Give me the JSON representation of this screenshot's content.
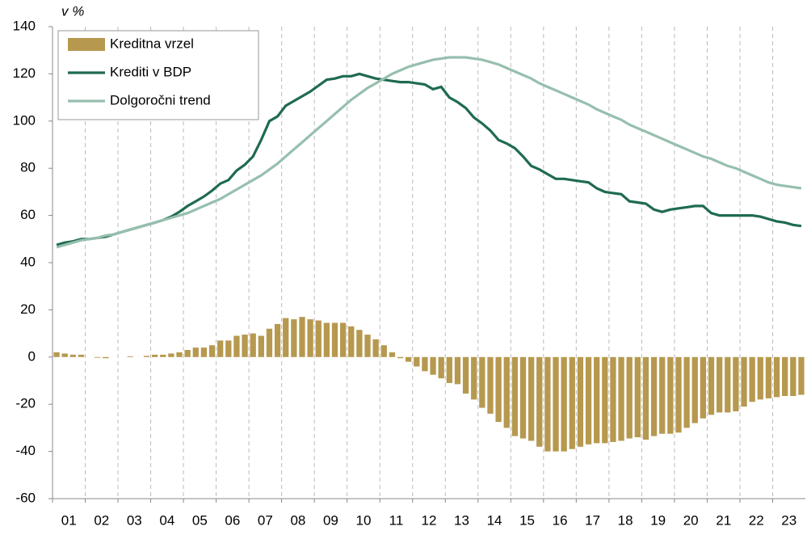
{
  "chart_data": {
    "type": "bar-line",
    "y_label": "v %",
    "categories": [
      "01",
      null,
      null,
      null,
      "02",
      null,
      null,
      null,
      "03",
      null,
      null,
      null,
      "04",
      null,
      null,
      null,
      "05",
      null,
      null,
      null,
      "06",
      null,
      null,
      null,
      "07",
      null,
      null,
      null,
      "08",
      null,
      null,
      null,
      "09",
      null,
      null,
      null,
      "10",
      null,
      null,
      null,
      "11",
      null,
      null,
      null,
      "12",
      null,
      null,
      null,
      "13",
      null,
      null,
      null,
      "14",
      null,
      null,
      null,
      "15",
      null,
      null,
      null,
      "16",
      null,
      null,
      null,
      "17",
      null,
      null,
      null,
      "18",
      null,
      null,
      null,
      "19",
      null,
      null,
      null,
      "20",
      null,
      null,
      null,
      "21",
      null,
      null,
      null,
      "22",
      null,
      null,
      null,
      "23",
      null,
      null,
      null
    ],
    "ylim": [
      -60,
      140
    ],
    "yticks": [
      -60,
      -40,
      -20,
      0,
      20,
      40,
      60,
      80,
      100,
      120,
      140
    ],
    "grid": true,
    "legend": "top-left",
    "series": [
      {
        "name": "Kreditna vrzel",
        "kind": "bar",
        "color": "#b6994f",
        "values": [
          2,
          1.5,
          1,
          1,
          0,
          -0.3,
          -0.5,
          0,
          0,
          0.3,
          0,
          0.5,
          1,
          1,
          1.5,
          2,
          3,
          4,
          4,
          5,
          7,
          7,
          9,
          9.5,
          10,
          9,
          12,
          14,
          16.5,
          16,
          17,
          16,
          15.5,
          14.5,
          14.5,
          14.5,
          13,
          11.5,
          9.5,
          7.5,
          5,
          2,
          -0.5,
          -2,
          -4,
          -6,
          -7.5,
          -9,
          -11,
          -11.5,
          -15.5,
          -18,
          -21.5,
          -24,
          -27.5,
          -30,
          -33.5,
          -34.5,
          -35.5,
          -38,
          -40,
          -40,
          -40,
          -39,
          -38,
          -37,
          -36.5,
          -36.5,
          -36,
          -35.5,
          -34.5,
          -34,
          -35,
          -33.5,
          -32.5,
          -32.5,
          -32,
          -30,
          -28,
          -26,
          -24.5,
          -23.5,
          -23.5,
          -23,
          -21,
          -19,
          -18,
          -17.5,
          -17,
          -16.5,
          -16.5,
          -16
        ]
      },
      {
        "name": "Krediti v BDP",
        "kind": "line",
        "color": "#1f6b4f",
        "values": [
          47.5,
          48.5,
          49,
          50,
          50,
          50.5,
          51,
          52,
          53,
          54,
          55,
          56,
          57,
          58,
          59.5,
          61.5,
          64,
          66,
          68,
          70.5,
          73.5,
          75,
          79,
          81.5,
          85,
          92,
          100,
          102,
          106.5,
          108.5,
          110.5,
          112.5,
          115,
          117.5,
          118,
          119,
          119,
          120,
          119,
          118,
          117.5,
          117,
          116.5,
          116.5,
          116,
          115.5,
          113.5,
          114.5,
          110,
          108,
          105.5,
          101.5,
          99,
          96,
          92,
          90.5,
          88.5,
          85,
          81,
          79.5,
          77.5,
          75.5,
          75.5,
          75,
          74.5,
          74,
          71.5,
          70,
          69.5,
          69,
          66,
          65.5,
          65,
          62.5,
          61.5,
          62.5,
          63,
          63.5,
          64,
          64,
          61,
          60,
          60,
          60,
          60,
          60,
          59.5,
          58.5,
          57.5,
          57,
          56,
          55.5
        ]
      },
      {
        "name": "Dolgoročni trend",
        "kind": "line",
        "color": "#96bfae",
        "values": [
          46.5,
          47.5,
          48.5,
          49.5,
          50,
          50.5,
          51.5,
          52,
          53,
          54,
          55,
          56,
          57,
          58,
          59,
          60,
          61,
          62.5,
          64,
          65.5,
          67,
          69,
          71,
          73,
          75,
          77,
          79.5,
          82,
          85,
          88,
          91,
          94,
          97,
          100,
          103,
          106,
          109,
          111.5,
          114,
          116,
          118,
          120,
          121.5,
          123,
          124,
          125,
          126,
          126.5,
          127,
          127,
          127,
          126.5,
          126,
          125,
          124,
          122.5,
          121,
          119.5,
          118,
          116,
          114.5,
          113,
          111.5,
          110,
          108.5,
          107,
          105,
          103.5,
          102,
          100.5,
          98.5,
          97,
          95.5,
          94,
          92.5,
          91,
          89.5,
          88,
          86.5,
          85,
          84,
          82.5,
          81,
          80,
          78.5,
          77,
          75.5,
          74,
          73,
          72.5,
          72,
          71.5
        ]
      }
    ]
  }
}
